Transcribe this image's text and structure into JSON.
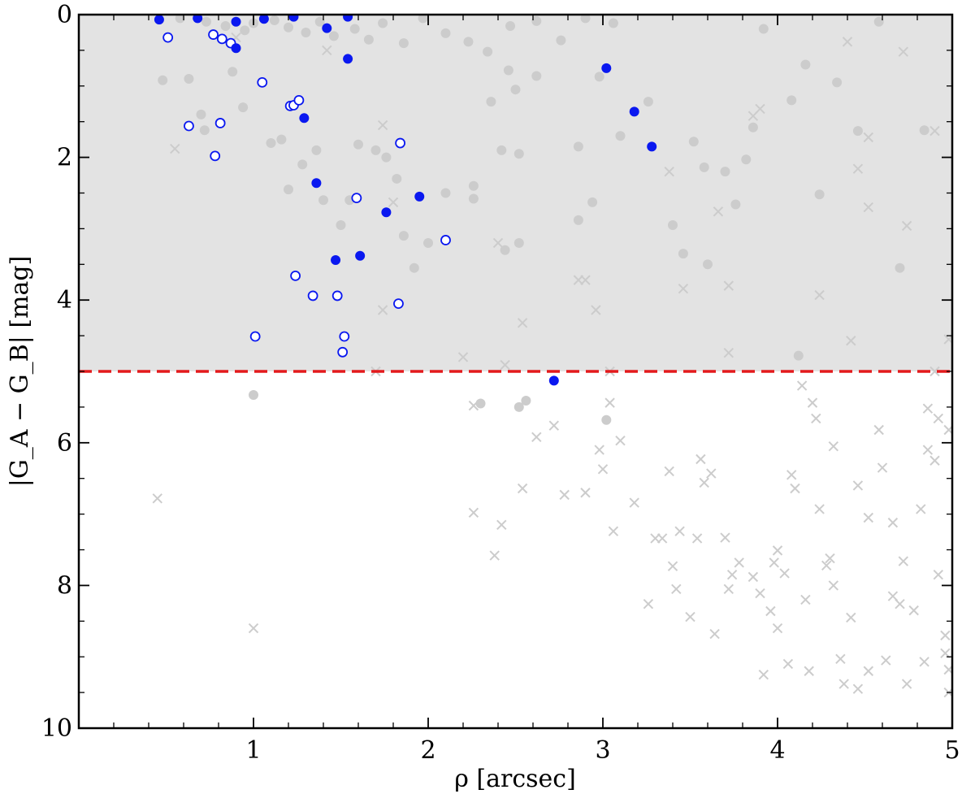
{
  "chart_data": {
    "type": "scatter",
    "xlabel": "ρ [arcsec]",
    "ylabel": "|G_A − G_B| [mag]",
    "xlim": [
      0,
      5
    ],
    "ylim": [
      10,
      0
    ],
    "y_inverted": true,
    "x_ticks": [
      1,
      2,
      3,
      4,
      5
    ],
    "x_tick_labels": [
      "1",
      "2",
      "3",
      "4",
      "5"
    ],
    "y_ticks": [
      0,
      2,
      4,
      6,
      8,
      10
    ],
    "y_tick_labels": [
      "0",
      "2",
      "4",
      "6",
      "8",
      "10"
    ],
    "grid": false,
    "legend": false,
    "threshold": {
      "y": 5,
      "style": "dashed",
      "color": "#e31a1c"
    },
    "shaded_region": {
      "y_from": 0,
      "y_to": 5,
      "color": "#e3e3e3"
    },
    "colors": {
      "blue": "#0a18f0",
      "gray": "#cccccc",
      "red": "#e31a1c",
      "shade": "#e3e3e3"
    },
    "series": [
      {
        "marker": "filled-circle-blue",
        "points": [
          [
            0.46,
            0.07
          ],
          [
            0.68,
            0.05
          ],
          [
            0.9,
            0.1
          ],
          [
            1.06,
            0.06
          ],
          [
            1.23,
            0.03
          ],
          [
            1.54,
            0.03
          ],
          [
            1.42,
            0.19
          ],
          [
            0.9,
            0.47
          ],
          [
            1.54,
            0.62
          ],
          [
            3.02,
            0.75
          ],
          [
            1.29,
            1.45
          ],
          [
            3.18,
            1.36
          ],
          [
            3.28,
            1.85
          ],
          [
            1.36,
            2.36
          ],
          [
            1.95,
            2.55
          ],
          [
            1.76,
            2.77
          ],
          [
            1.61,
            3.38
          ],
          [
            1.47,
            3.44
          ],
          [
            2.72,
            5.13
          ]
        ]
      },
      {
        "marker": "open-circle-blue",
        "points": [
          [
            0.51,
            0.32
          ],
          [
            0.77,
            0.28
          ],
          [
            0.82,
            0.34
          ],
          [
            0.87,
            0.4
          ],
          [
            1.05,
            0.95
          ],
          [
            1.21,
            1.28
          ],
          [
            1.23,
            1.27
          ],
          [
            1.26,
            1.2
          ],
          [
            0.63,
            1.56
          ],
          [
            0.81,
            1.52
          ],
          [
            0.78,
            1.98
          ],
          [
            1.84,
            1.8
          ],
          [
            1.59,
            2.57
          ],
          [
            2.1,
            3.16
          ],
          [
            1.24,
            3.66
          ],
          [
            1.34,
            3.94
          ],
          [
            1.48,
            3.94
          ],
          [
            1.83,
            4.05
          ],
          [
            1.01,
            4.51
          ],
          [
            1.52,
            4.51
          ],
          [
            1.51,
            4.73
          ]
        ]
      },
      {
        "marker": "filled-circle-gray",
        "points": [
          [
            0.58,
            0.05
          ],
          [
            0.73,
            0.1
          ],
          [
            0.84,
            0.16
          ],
          [
            0.95,
            0.22
          ],
          [
            1.0,
            0.12
          ],
          [
            1.12,
            0.08
          ],
          [
            1.2,
            0.18
          ],
          [
            1.3,
            0.25
          ],
          [
            1.38,
            0.1
          ],
          [
            1.46,
            0.3
          ],
          [
            1.58,
            0.2
          ],
          [
            1.66,
            0.35
          ],
          [
            1.74,
            0.12
          ],
          [
            1.86,
            0.4
          ],
          [
            1.97,
            0.05
          ],
          [
            2.1,
            0.26
          ],
          [
            2.23,
            0.38
          ],
          [
            2.34,
            0.52
          ],
          [
            2.47,
            0.16
          ],
          [
            2.62,
            0.09
          ],
          [
            2.76,
            0.36
          ],
          [
            2.9,
            0.05
          ],
          [
            0.48,
            0.92
          ],
          [
            0.63,
            0.9
          ],
          [
            0.7,
            1.4
          ],
          [
            0.72,
            1.62
          ],
          [
            0.88,
            0.8
          ],
          [
            0.94,
            1.3
          ],
          [
            1.1,
            1.8
          ],
          [
            1.16,
            1.75
          ],
          [
            1.2,
            2.45
          ],
          [
            1.28,
            2.1
          ],
          [
            1.36,
            1.9
          ],
          [
            1.4,
            2.6
          ],
          [
            1.5,
            2.95
          ],
          [
            1.55,
            2.6
          ],
          [
            1.6,
            1.82
          ],
          [
            1.7,
            1.9
          ],
          [
            1.76,
            2.0
          ],
          [
            1.82,
            2.3
          ],
          [
            1.86,
            3.1
          ],
          [
            1.92,
            3.55
          ],
          [
            2.0,
            3.2
          ],
          [
            2.1,
            2.5
          ],
          [
            2.26,
            2.4
          ],
          [
            2.26,
            2.58
          ],
          [
            2.36,
            1.22
          ],
          [
            2.42,
            1.9
          ],
          [
            2.44,
            3.3
          ],
          [
            2.46,
            0.78
          ],
          [
            2.5,
            1.05
          ],
          [
            2.52,
            1.95
          ],
          [
            2.52,
            3.2
          ],
          [
            2.62,
            0.86
          ],
          [
            2.86,
            1.85
          ],
          [
            2.86,
            2.88
          ],
          [
            2.94,
            2.63
          ],
          [
            2.98,
            0.87
          ],
          [
            3.06,
            0.12
          ],
          [
            3.1,
            1.7
          ],
          [
            3.26,
            1.22
          ],
          [
            3.4,
            2.95
          ],
          [
            3.46,
            3.35
          ],
          [
            3.52,
            1.78
          ],
          [
            3.58,
            2.14
          ],
          [
            3.6,
            3.5
          ],
          [
            3.7,
            2.2
          ],
          [
            3.76,
            2.66
          ],
          [
            3.82,
            2.03
          ],
          [
            3.86,
            1.58
          ],
          [
            3.92,
            0.2
          ],
          [
            4.08,
            1.2
          ],
          [
            4.16,
            0.7
          ],
          [
            4.24,
            2.52
          ],
          [
            4.34,
            0.95
          ],
          [
            4.46,
            1.63
          ],
          [
            4.58,
            0.1
          ],
          [
            4.7,
            3.55
          ],
          [
            4.84,
            1.62
          ],
          [
            1.0,
            5.33
          ],
          [
            2.3,
            5.45
          ],
          [
            2.52,
            5.5
          ],
          [
            2.56,
            5.41
          ],
          [
            3.02,
            5.68
          ],
          [
            4.12,
            4.78
          ]
        ]
      },
      {
        "marker": "cross-gray",
        "points": [
          [
            0.55,
            1.88
          ],
          [
            0.9,
            0.32
          ],
          [
            1.42,
            0.5
          ],
          [
            1.74,
            1.55
          ],
          [
            1.8,
            2.63
          ],
          [
            1.74,
            4.14
          ],
          [
            1.7,
            5.0
          ],
          [
            2.2,
            4.8
          ],
          [
            2.4,
            3.2
          ],
          [
            2.44,
            4.91
          ],
          [
            2.54,
            4.32
          ],
          [
            2.86,
            3.72
          ],
          [
            2.9,
            3.72
          ],
          [
            2.96,
            4.14
          ],
          [
            3.04,
            5.0
          ],
          [
            3.38,
            2.2
          ],
          [
            3.46,
            3.84
          ],
          [
            3.66,
            2.76
          ],
          [
            3.72,
            4.74
          ],
          [
            3.72,
            3.8
          ],
          [
            3.86,
            1.42
          ],
          [
            3.9,
            1.32
          ],
          [
            4.24,
            3.93
          ],
          [
            4.4,
            0.38
          ],
          [
            4.42,
            4.57
          ],
          [
            4.46,
            2.16
          ],
          [
            4.52,
            1.72
          ],
          [
            4.52,
            2.7
          ],
          [
            4.72,
            0.52
          ],
          [
            4.74,
            2.96
          ],
          [
            4.9,
            1.63
          ],
          [
            4.98,
            4.55
          ],
          [
            4.9,
            5.0
          ],
          [
            0.45,
            6.78
          ],
          [
            1.0,
            8.6
          ],
          [
            2.26,
            5.48
          ],
          [
            2.26,
            6.98
          ],
          [
            2.38,
            7.58
          ],
          [
            2.54,
            6.64
          ],
          [
            2.42,
            7.15
          ],
          [
            2.62,
            5.92
          ],
          [
            2.72,
            5.76
          ],
          [
            2.78,
            6.73
          ],
          [
            2.9,
            6.7
          ],
          [
            2.98,
            6.1
          ],
          [
            3.0,
            6.37
          ],
          [
            3.04,
            5.44
          ],
          [
            3.06,
            7.24
          ],
          [
            3.1,
            5.97
          ],
          [
            3.18,
            6.84
          ],
          [
            3.26,
            8.26
          ],
          [
            3.3,
            7.34
          ],
          [
            3.34,
            7.34
          ],
          [
            3.38,
            6.4
          ],
          [
            3.4,
            7.73
          ],
          [
            3.42,
            8.05
          ],
          [
            3.44,
            7.24
          ],
          [
            3.5,
            8.44
          ],
          [
            3.54,
            7.34
          ],
          [
            3.56,
            6.23
          ],
          [
            3.58,
            6.56
          ],
          [
            3.62,
            6.43
          ],
          [
            3.64,
            8.68
          ],
          [
            3.7,
            7.33
          ],
          [
            3.72,
            8.05
          ],
          [
            3.74,
            7.85
          ],
          [
            3.78,
            7.68
          ],
          [
            3.86,
            7.88
          ],
          [
            3.9,
            8.11
          ],
          [
            3.96,
            8.36
          ],
          [
            3.98,
            7.68
          ],
          [
            4.0,
            7.51
          ],
          [
            4.04,
            7.83
          ],
          [
            4.08,
            6.45
          ],
          [
            4.1,
            6.64
          ],
          [
            4.14,
            5.2
          ],
          [
            4.2,
            5.44
          ],
          [
            4.22,
            5.66
          ],
          [
            4.24,
            6.93
          ],
          [
            4.28,
            7.72
          ],
          [
            4.3,
            7.62
          ],
          [
            4.32,
            8.0
          ],
          [
            4.36,
            9.03
          ],
          [
            4.38,
            9.38
          ],
          [
            4.42,
            8.45
          ],
          [
            4.46,
            6.6
          ],
          [
            4.52,
            7.05
          ],
          [
            4.58,
            5.82
          ],
          [
            4.6,
            6.35
          ],
          [
            4.66,
            8.15
          ],
          [
            4.7,
            8.26
          ],
          [
            4.72,
            7.66
          ],
          [
            4.78,
            8.35
          ],
          [
            4.84,
            9.07
          ],
          [
            4.86,
            6.1
          ],
          [
            4.9,
            6.25
          ],
          [
            4.92,
            7.85
          ],
          [
            4.96,
            8.95
          ],
          [
            4.98,
            9.18
          ],
          [
            4.98,
            9.5
          ],
          [
            4.96,
            8.7
          ],
          [
            4.86,
            5.52
          ],
          [
            4.92,
            5.66
          ],
          [
            4.98,
            5.82
          ],
          [
            4.66,
            7.12
          ],
          [
            4.74,
            9.38
          ],
          [
            4.82,
            6.93
          ],
          [
            4.62,
            9.05
          ],
          [
            4.52,
            9.2
          ],
          [
            4.46,
            9.45
          ],
          [
            4.18,
            9.2
          ],
          [
            4.06,
            9.1
          ],
          [
            4.0,
            8.6
          ],
          [
            3.92,
            9.25
          ],
          [
            4.16,
            8.2
          ],
          [
            4.32,
            6.05
          ]
        ]
      }
    ]
  }
}
